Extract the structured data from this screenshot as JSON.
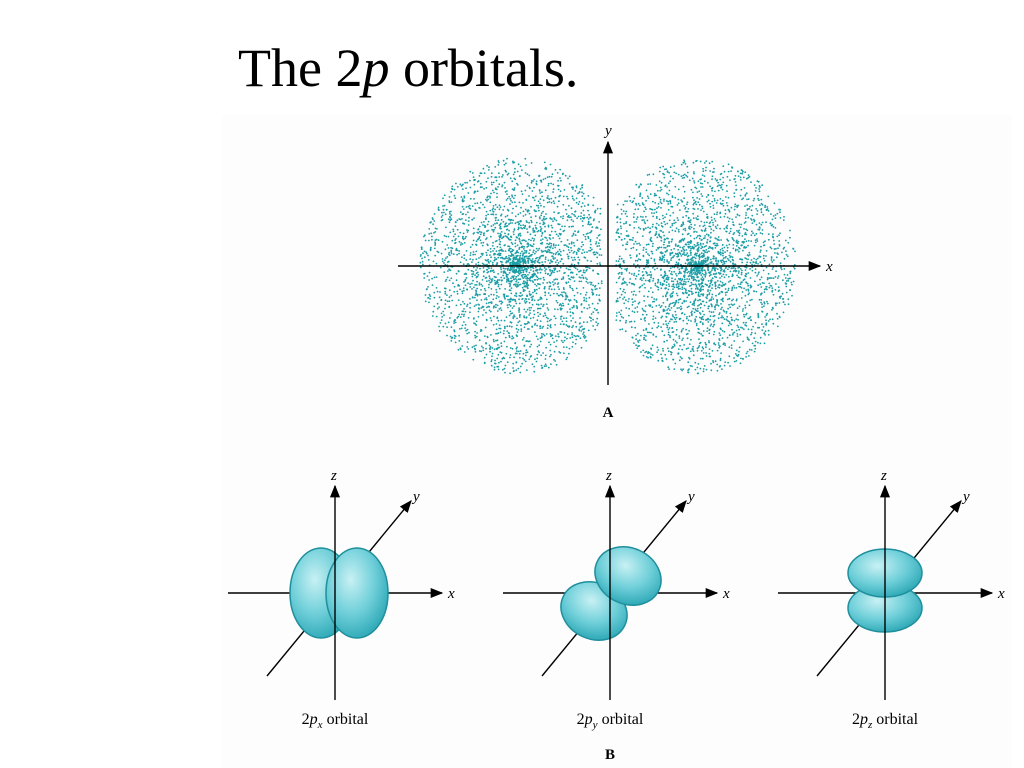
{
  "title": [
    "The 2",
    "p",
    " orbitals."
  ],
  "panel_a": {
    "axes": {
      "y": "y",
      "x": "x"
    },
    "label": "A"
  },
  "panel_b": {
    "orbitals": [
      {
        "axes": {
          "z": "z",
          "y": "y",
          "x": "x"
        },
        "label": [
          "2",
          "p",
          "x",
          " orbital"
        ]
      },
      {
        "axes": {
          "z": "z",
          "y": "y",
          "x": "x"
        },
        "label": [
          "2",
          "p",
          "y",
          " orbital"
        ]
      },
      {
        "axes": {
          "z": "z",
          "y": "y",
          "x": "x"
        },
        "label": [
          "2",
          "p",
          "z",
          " orbital"
        ]
      }
    ],
    "label": "B"
  }
}
